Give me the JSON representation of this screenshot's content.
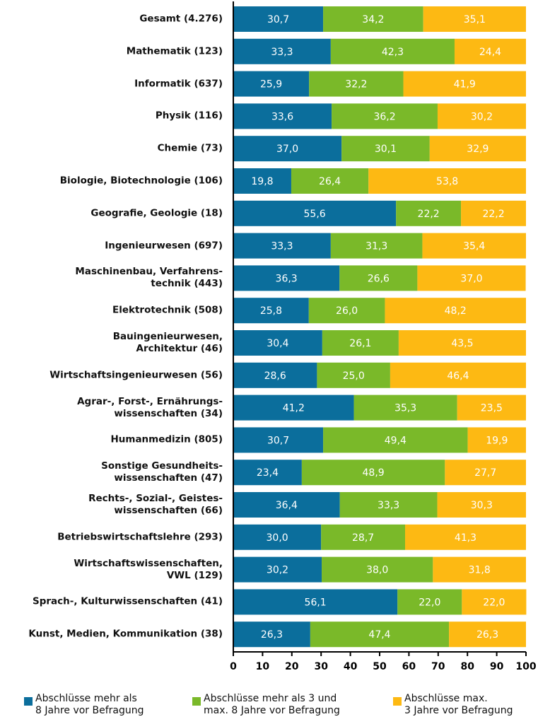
{
  "chart_data": {
    "type": "stacked_barh",
    "categories": [
      "Gesamt (4.276)",
      "Mathematik (123)",
      "Informatik (637)",
      "Physik (116)",
      "Chemie (73)",
      "Biologie, Biotechnologie (106)",
      "Geografie, Geologie (18)",
      "Ingenieurwesen (697)",
      "Maschinenbau, Verfahrens-\ntechnik (443)",
      "Elektrotechnik (508)",
      "Bauingenieurwesen,\nArchitektur (46)",
      "Wirtschaftsingenieurwesen (56)",
      "Agrar-, Forst-, Ernährungs-\nwissenschaften (34)",
      "Humanmedizin (805)",
      "Sonstige Gesundheits-\nwissenschaften (47)",
      "Rechts-, Sozial-, Geistes-\nwissenschaften (66)",
      "Betriebswirtschaftslehre (293)",
      "Wirtschaftswissenschaften,\nVWL (129)",
      "Sprach-, Kulturwissenschaften (41)",
      "Kunst, Medien, Kommunikation (38)"
    ],
    "series": [
      {
        "name": "Abschlüsse mehr als\n8 Jahre vor Befragung",
        "color": "#0b6e9c",
        "values": [
          30.7,
          33.3,
          25.9,
          33.6,
          37,
          19.8,
          55.6,
          33.3,
          36.3,
          25.8,
          30.4,
          28.6,
          41.2,
          30.7,
          23.4,
          36.4,
          30,
          30.2,
          56.1,
          26.3
        ],
        "value_labels": [
          "30,7",
          "33,3",
          "25,9",
          "33,6",
          "37,0",
          "19,8",
          "55,6",
          "33,3",
          "36,3",
          "25,8",
          "30,4",
          "28,6",
          "41,2",
          "30,7",
          "23,4",
          "36,4",
          "30,0",
          "30,2",
          "56,1",
          "26,3"
        ]
      },
      {
        "name": "Abschlüsse mehr als 3 und\nmax. 8 Jahre vor Befragung",
        "color": "#7ab929",
        "values": [
          34.2,
          42.3,
          32.2,
          36.2,
          30.1,
          26.4,
          22.2,
          31.3,
          26.6,
          26,
          26.1,
          25,
          35.3,
          49.4,
          48.9,
          33.3,
          28.7,
          38,
          22,
          47.4
        ],
        "value_labels": [
          "34,2",
          "42,3",
          "32,2",
          "36,2",
          "30,1",
          "26,4",
          "22,2",
          "31,3",
          "26,6",
          "26,0",
          "26,1",
          "25,0",
          "35,3",
          "49,4",
          "48,9",
          "33,3",
          "28,7",
          "38,0",
          "22,0",
          "47,4"
        ]
      },
      {
        "name": "Abschlüsse max.\n3 Jahre vor Befragung",
        "color": "#fdb913",
        "values": [
          35.1,
          24.4,
          41.9,
          30.2,
          32.9,
          53.8,
          22.2,
          35.4,
          37,
          48.2,
          43.5,
          46.4,
          23.5,
          19.9,
          27.7,
          30.3,
          41.3,
          31.8,
          22,
          26.3
        ],
        "value_labels": [
          "35,1",
          "24,4",
          "41,9",
          "30,2",
          "32,9",
          "53,8",
          "22,2",
          "35,4",
          "37,0",
          "48,2",
          "43,5",
          "46,4",
          "23,5",
          "19,9",
          "27,7",
          "30,3",
          "41,3",
          "31,8",
          "22,0",
          "26,3"
        ]
      }
    ],
    "xlim": [
      0,
      100
    ],
    "xticks": [
      0,
      10,
      20,
      30,
      40,
      50,
      60,
      70,
      80,
      90,
      100
    ]
  }
}
